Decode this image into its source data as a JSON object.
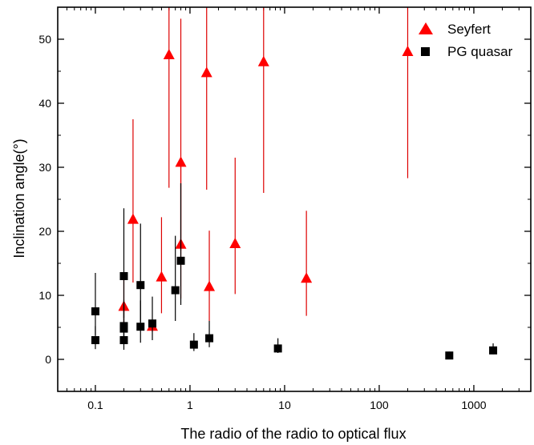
{
  "chart_data": {
    "type": "scatter",
    "title": "",
    "xlabel": "The radio of the radio to optical flux",
    "ylabel": "Inclination angle(°)",
    "xscale": "log",
    "xlim": [
      0.04,
      4000
    ],
    "ylim": [
      -5,
      55
    ],
    "xticks": [
      {
        "value": 0.1,
        "label": "0.1"
      },
      {
        "value": 1,
        "label": "1"
      },
      {
        "value": 10,
        "label": "10"
      },
      {
        "value": 100,
        "label": "100"
      },
      {
        "value": 1000,
        "label": "1000"
      }
    ],
    "yticks": [
      {
        "value": 0,
        "label": "0"
      },
      {
        "value": 10,
        "label": "10"
      },
      {
        "value": 20,
        "label": "20"
      },
      {
        "value": 30,
        "label": "30"
      },
      {
        "value": 40,
        "label": "40"
      },
      {
        "value": 50,
        "label": "50"
      }
    ],
    "grid": false,
    "legend_position": "top-right",
    "series": [
      {
        "name": "Seyfert",
        "marker": "triangle",
        "color": "#ff0000",
        "errorbar_color": "#dd0000",
        "points": [
          {
            "x": 0.2,
            "y": 8.2,
            "lo": 4.8,
            "hi": 13.0
          },
          {
            "x": 0.25,
            "y": 21.8,
            "lo": 12.0,
            "hi": 37.5
          },
          {
            "x": 0.4,
            "y": 5.1,
            "lo": 4.3,
            "hi": 5.8
          },
          {
            "x": 0.5,
            "y": 12.8,
            "lo": 7.2,
            "hi": 22.2
          },
          {
            "x": 0.6,
            "y": 47.5,
            "lo": 26.8,
            "hi": 55
          },
          {
            "x": 0.8,
            "y": 30.7,
            "lo": 17.0,
            "hi": 53.2
          },
          {
            "x": 0.8,
            "y": 17.9,
            "lo": 9.5,
            "hi": 30.8
          },
          {
            "x": 1.5,
            "y": 44.7,
            "lo": 26.5,
            "hi": 55
          },
          {
            "x": 1.6,
            "y": 11.3,
            "lo": 6.0,
            "hi": 20.1
          },
          {
            "x": 3.0,
            "y": 18.0,
            "lo": 10.2,
            "hi": 31.5
          },
          {
            "x": 6.0,
            "y": 46.4,
            "lo": 26.0,
            "hi": 55
          },
          {
            "x": 17.0,
            "y": 12.6,
            "lo": 6.8,
            "hi": 23.2
          },
          {
            "x": 200.0,
            "y": 48.0,
            "lo": 28.3,
            "hi": 55
          }
        ]
      },
      {
        "name": "PG quasar",
        "marker": "square",
        "color": "#000000",
        "errorbar_color": "#000000",
        "points": [
          {
            "x": 0.1,
            "y": 7.5,
            "lo": 3.8,
            "hi": 13.5
          },
          {
            "x": 0.1,
            "y": 3.0,
            "lo": 1.6,
            "hi": 5.2
          },
          {
            "x": 0.2,
            "y": 13.0,
            "lo": 6.5,
            "hi": 23.6
          },
          {
            "x": 0.2,
            "y": 5.2,
            "lo": 2.7,
            "hi": 9.3
          },
          {
            "x": 0.2,
            "y": 4.8,
            "lo": 2.4,
            "hi": 8.5
          },
          {
            "x": 0.2,
            "y": 3.0,
            "lo": 1.5,
            "hi": 5.5
          },
          {
            "x": 0.3,
            "y": 11.6,
            "lo": 5.8,
            "hi": 21.2
          },
          {
            "x": 0.3,
            "y": 5.1,
            "lo": 2.6,
            "hi": 9.2
          },
          {
            "x": 0.4,
            "y": 5.6,
            "lo": 3.0,
            "hi": 9.8
          },
          {
            "x": 0.7,
            "y": 10.8,
            "lo": 6.0,
            "hi": 19.3
          },
          {
            "x": 0.8,
            "y": 15.4,
            "lo": 8.5,
            "hi": 27.5
          },
          {
            "x": 1.1,
            "y": 2.3,
            "lo": 1.3,
            "hi": 4.1
          },
          {
            "x": 1.6,
            "y": 3.3,
            "lo": 1.9,
            "hi": 6.0
          },
          {
            "x": 8.5,
            "y": 1.7,
            "lo": 1.0,
            "hi": 3.3
          },
          {
            "x": 550.0,
            "y": 0.6,
            "lo": 0.3,
            "hi": 1.2
          },
          {
            "x": 1600.0,
            "y": 1.4,
            "lo": 0.8,
            "hi": 2.5
          }
        ]
      }
    ]
  }
}
